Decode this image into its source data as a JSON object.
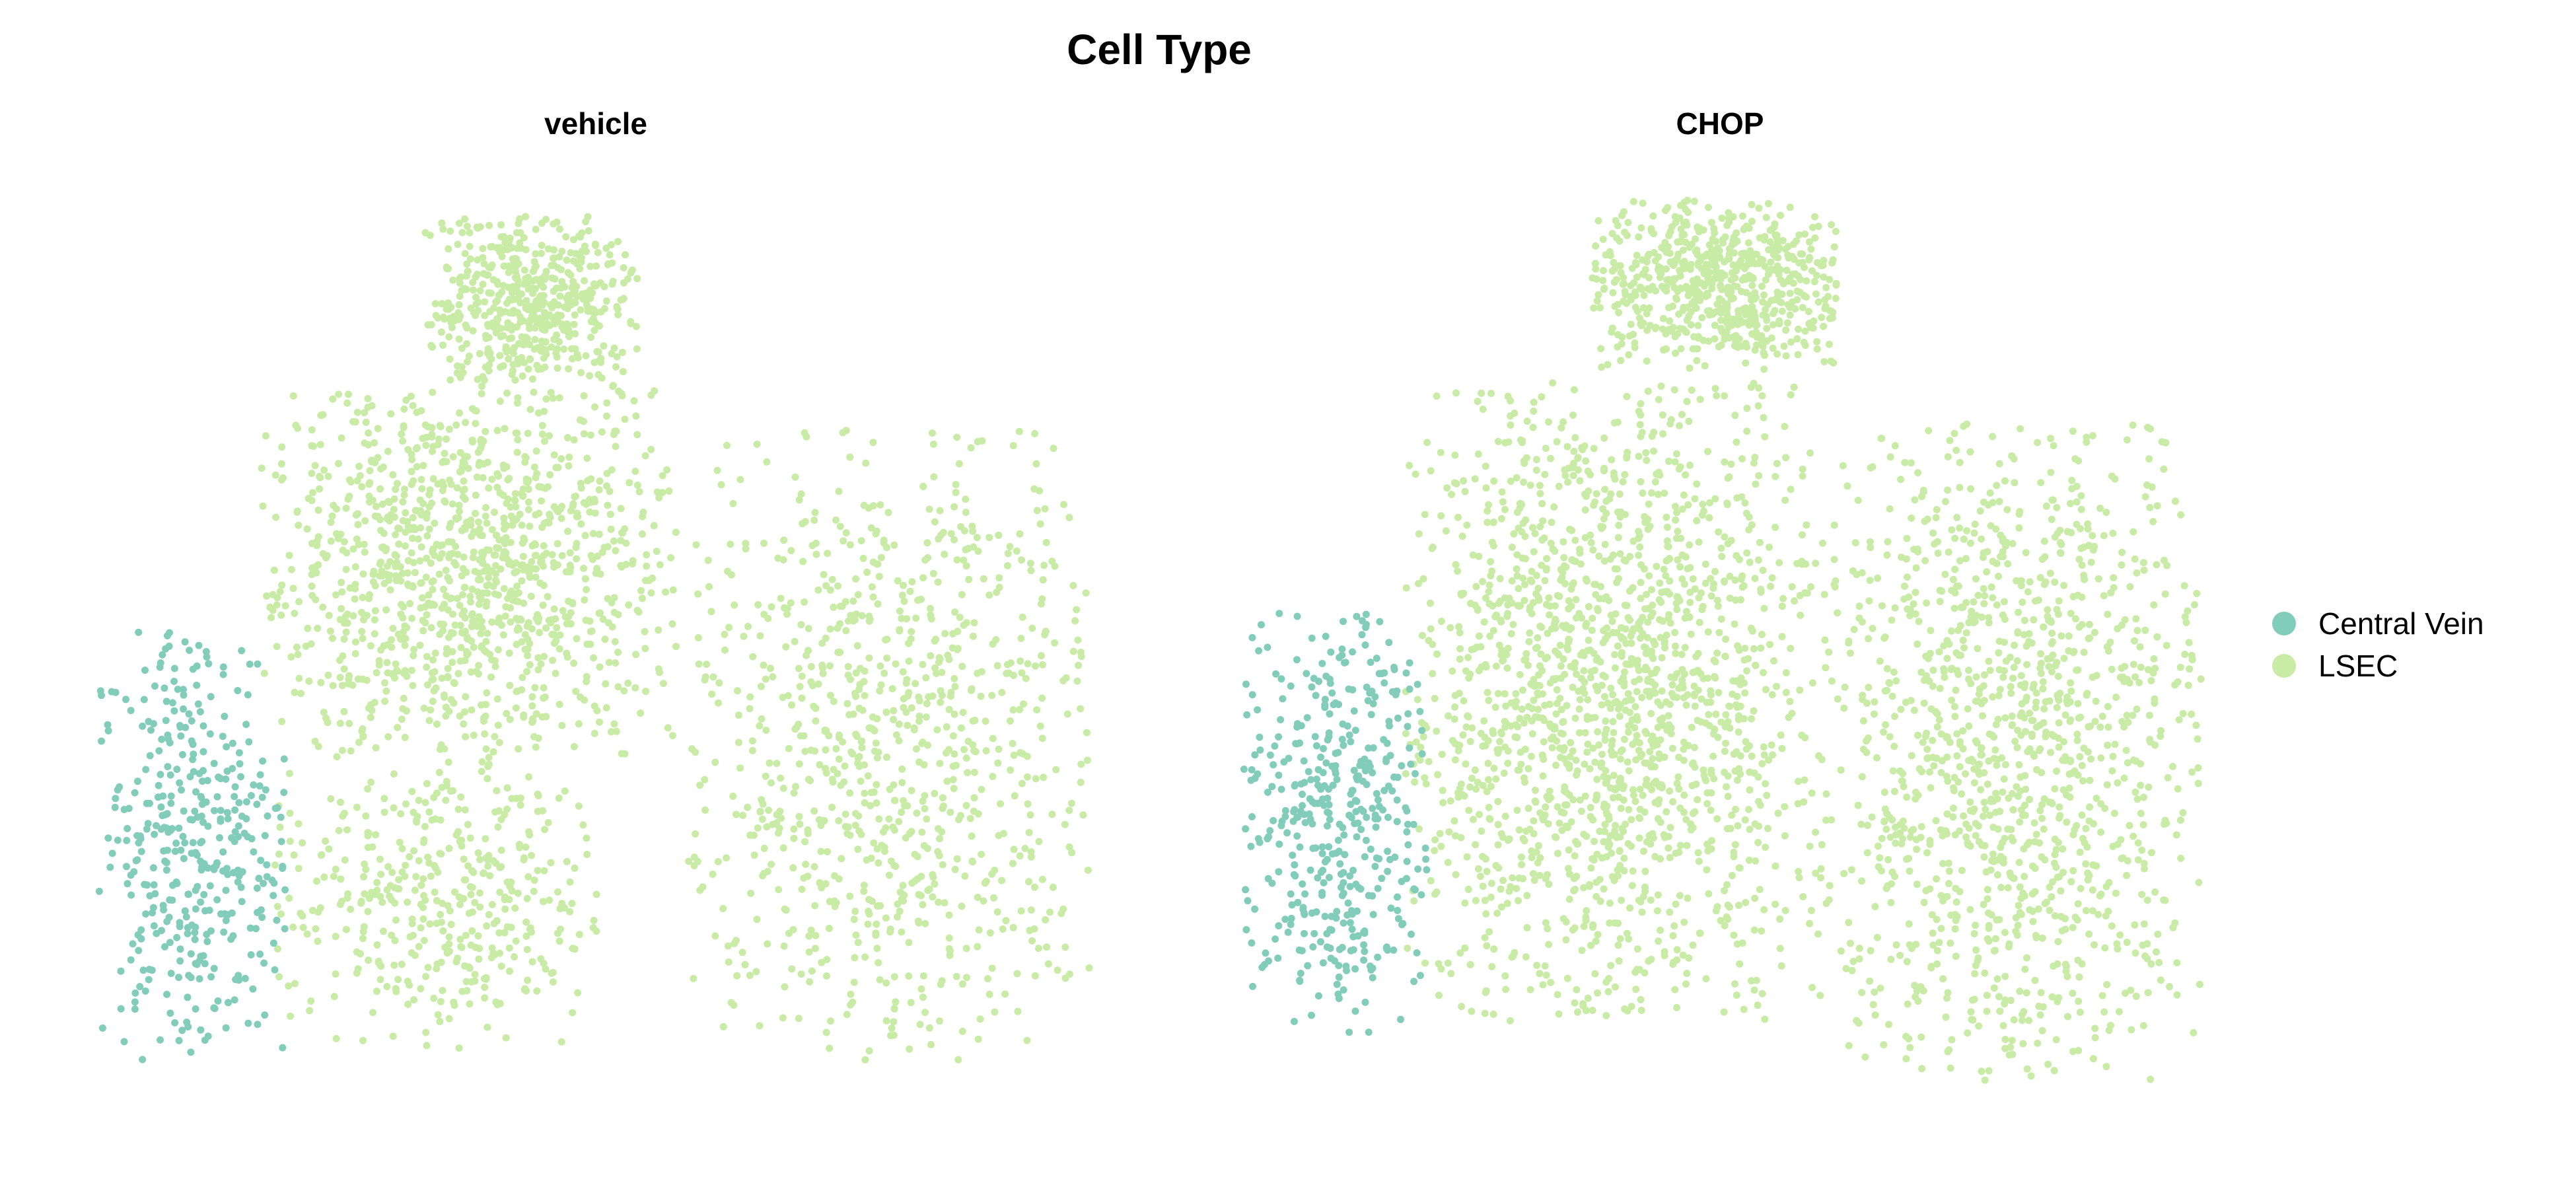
{
  "title": "Cell Type",
  "legend": {
    "items": [
      {
        "label": "Central Vein",
        "color": "#82CDB9"
      },
      {
        "label": "LSEC",
        "color": "#C8EBA5"
      }
    ]
  },
  "chart_data": {
    "type": "scatter",
    "title": "Cell Type",
    "xlabel": "",
    "ylabel": "",
    "axes": "none",
    "grid": false,
    "legend_position": "right",
    "colors": {
      "Central Vein": "#82CDB9",
      "LSEC": "#C8EBA5"
    },
    "panels": [
      {
        "name": "vehicle",
        "clusters": [
          {
            "label": "LSEC",
            "count": 520,
            "x": [
              -3.2,
              0.2
            ],
            "y": [
              4.8,
              7.6
            ]
          },
          {
            "label": "LSEC",
            "count": 1150,
            "x": [
              -5.8,
              0.8
            ],
            "y": [
              -1.2,
              4.8
            ]
          },
          {
            "label": "LSEC",
            "count": 900,
            "x": [
              1.0,
              7.4
            ],
            "y": [
              -6.2,
              4.2
            ]
          },
          {
            "label": "LSEC",
            "count": 420,
            "x": [
              -5.6,
              -0.4
            ],
            "y": [
              -6.0,
              -1.2
            ]
          },
          {
            "label": "Central Vein",
            "count": 390,
            "x": [
              -8.4,
              -5.4
            ],
            "y": [
              -6.2,
              0.8
            ]
          }
        ]
      },
      {
        "name": "CHOP",
        "clusters": [
          {
            "label": "LSEC",
            "count": 650,
            "x": [
              -2.6,
              1.4
            ],
            "y": [
              5.0,
              7.8
            ]
          },
          {
            "label": "LSEC",
            "count": 1700,
            "x": [
              -5.6,
              1.0
            ],
            "y": [
              -5.8,
              4.8
            ]
          },
          {
            "label": "LSEC",
            "count": 1250,
            "x": [
              1.0,
              7.2
            ],
            "y": [
              -6.8,
              4.2
            ]
          },
          {
            "label": "Central Vein",
            "count": 430,
            "x": [
              -8.2,
              -5.2
            ],
            "y": [
              -6.0,
              1.0
            ]
          }
        ]
      }
    ]
  }
}
